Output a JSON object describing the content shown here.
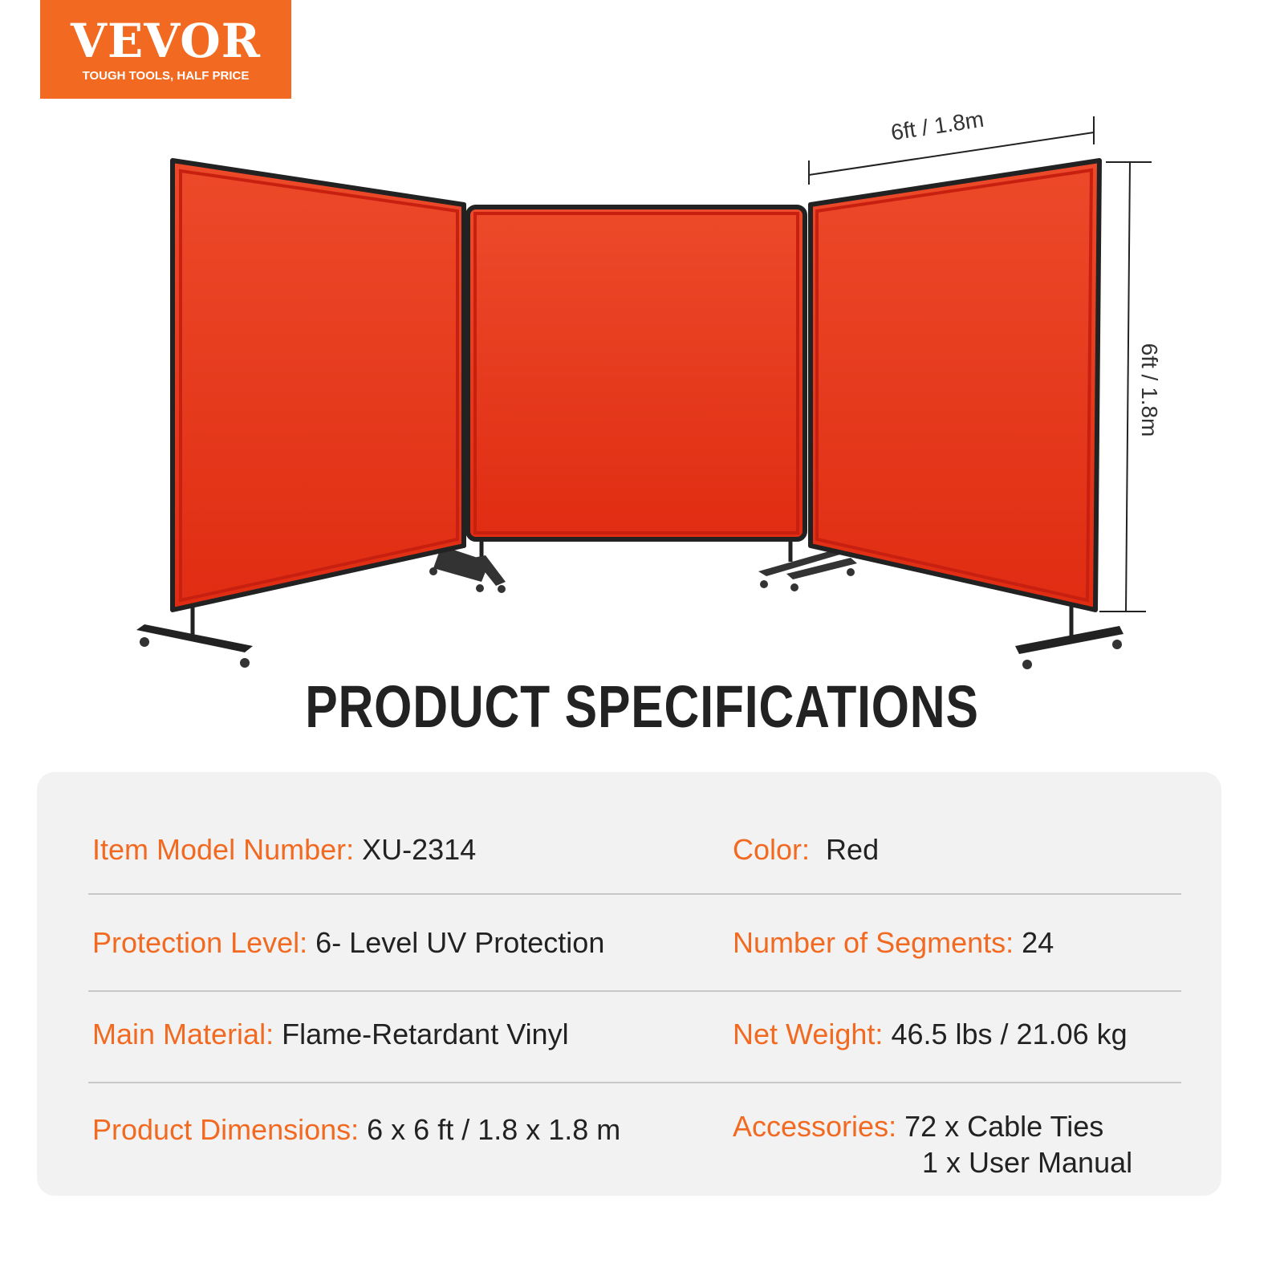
{
  "brand": {
    "name": "VEVOR",
    "tagline": "TOUGH TOOLS, HALF PRICE",
    "color": "#f26a21"
  },
  "dimensions": {
    "width_label": "6ft / 1.8m",
    "height_label": "6ft / 1.8m"
  },
  "title": "PRODUCT SPECIFICATIONS",
  "specs": {
    "model": {
      "label": "Item Model Number:",
      "value": "XU-2314"
    },
    "color": {
      "label": "Color:",
      "value": "Red"
    },
    "protection": {
      "label": "Protection Level:",
      "value": "6- Level UV Protection"
    },
    "segments": {
      "label": "Number of Segments:",
      "value": "24"
    },
    "material": {
      "label": "Main Material:",
      "value": "Flame-Retardant Vinyl"
    },
    "weight": {
      "label": "Net Weight:",
      "value": "46.5 lbs / 21.06 kg"
    },
    "product_dimensions": {
      "label": "Product Dimensions:",
      "value": "6 x 6 ft / 1.8 x 1.8 m"
    },
    "accessories": {
      "label": "Accessories:",
      "values": [
        "72 x Cable Ties",
        "1 x User Manual"
      ]
    }
  },
  "colors": {
    "label": "#f26a21",
    "text": "#222222",
    "panel": "#e8361c",
    "panel_bg": "#f2f2f2"
  }
}
